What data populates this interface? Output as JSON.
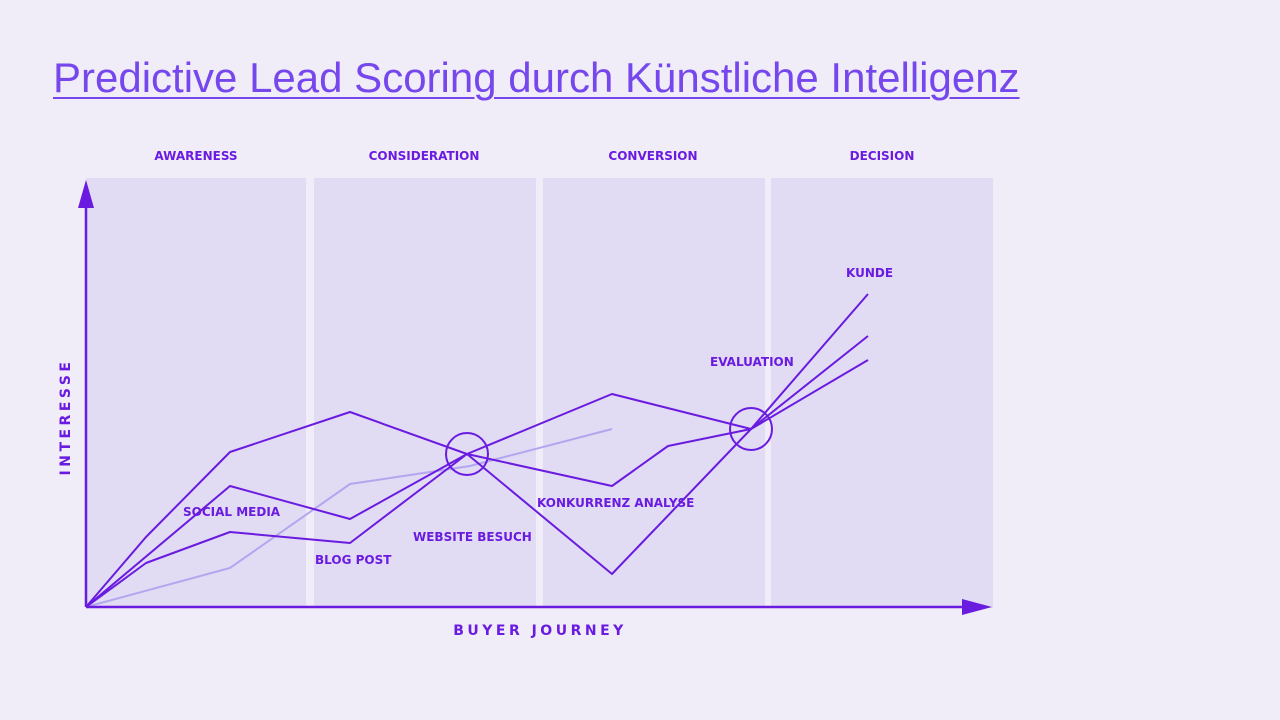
{
  "title": "Predictive Lead Scoring durch Künstliche Intelligenz",
  "stages": [
    "AWARENESS",
    "CONSIDERATION",
    "CONVERSION",
    "DECISION"
  ],
  "axes": {
    "x_label": "BUYER JOURNEY",
    "y_label": "INTERESSE"
  },
  "events": {
    "social_media": "SOCIAL MEDIA",
    "blog_post": "BLOG POST",
    "website_besuch": "WEBSITE BESUCH",
    "konkurrenz_analyse": "KONKURRENZ ANALYSE",
    "evaluation": "EVALUATION",
    "kunde": "KUNDE"
  },
  "colors": {
    "background": "#f0ecf8",
    "band": "#e1dbf4",
    "primary": "#6a1be0",
    "faded": "#b4a6ee",
    "title": "#7547ec"
  }
}
